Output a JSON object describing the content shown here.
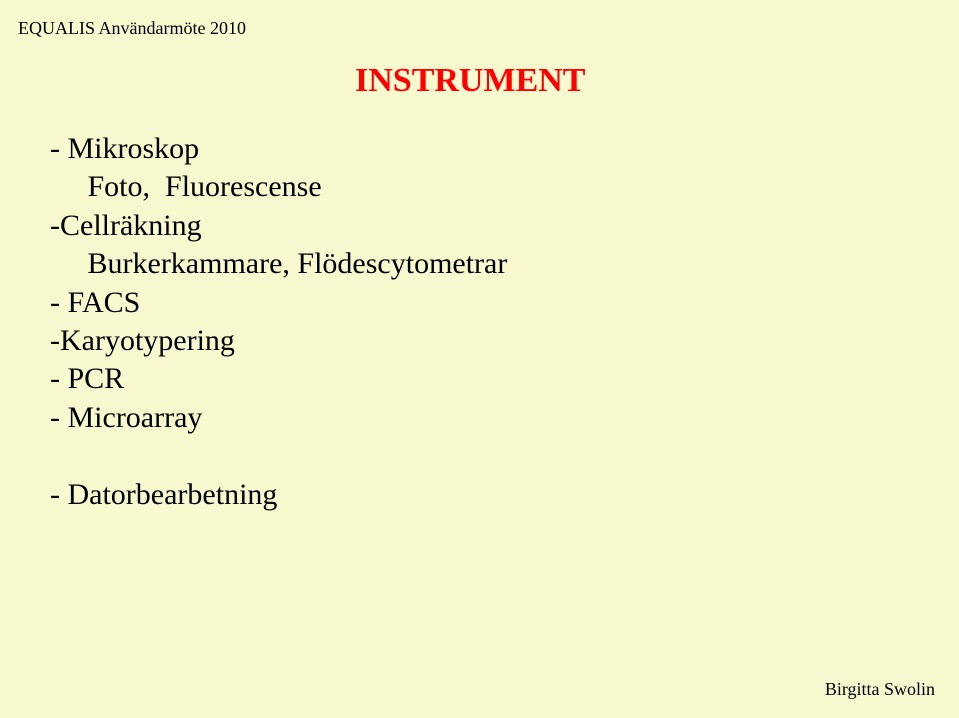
{
  "header": "EQUALIS Användarmöte 2010",
  "title": "INSTRUMENT",
  "lines": {
    "l1": "- Mikroskop",
    "l2": "     Foto,  Fluorescense",
    "l3": "-Cellräkning",
    "l4": "     Burkerkammare, Flödescytometrar",
    "l5": "- FACS",
    "l6": "-Karyotypering",
    "l7": "- PCR",
    "l8": "- Microarray",
    "l9": "",
    "l10": "- Datorbearbetning"
  },
  "footer": "Birgitta Swolin",
  "colors": {
    "background": "#f9f9d0",
    "title": "#ff0000",
    "text": "#000000"
  },
  "typography": {
    "header_fontsize": 18,
    "title_fontsize": 34,
    "body_fontsize": 30,
    "footer_fontsize": 18,
    "font_family": "Times New Roman"
  }
}
